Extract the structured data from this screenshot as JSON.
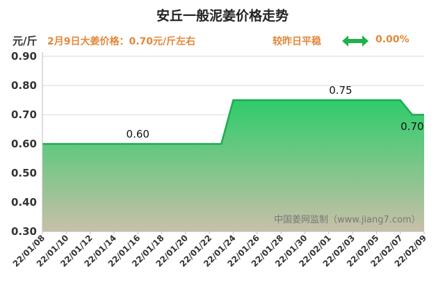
{
  "title": "安丘一般泥姜价格走势",
  "unit_label": "元/斤",
  "price_note": "2月9日大姜价格：0.70元/斤左右",
  "compare_note": "较昨日平稳",
  "change_value": "0.00%",
  "watermark": "中国姜网监制（www.jiang7.com）",
  "colors": {
    "line": "#1faa52",
    "fill_top": "#2ecc6a",
    "fill_bottom": "#c8c0a8",
    "accent": "#e3883a",
    "arrow": "#22b04b"
  },
  "icons": {
    "change": "double-arrow-icon"
  },
  "chart_data": {
    "type": "area",
    "ylim": [
      0.3,
      0.9
    ],
    "yticks": [
      "0.90",
      "0.80",
      "0.70",
      "0.60",
      "0.50",
      "0.40",
      "0.30"
    ],
    "xticks": [
      "22/01/08",
      "22/01/10",
      "22/01/12",
      "22/01/14",
      "22/01/16",
      "22/01/18",
      "22/01/20",
      "22/01/22",
      "22/01/24",
      "22/01/26",
      "22/01/28",
      "22/01/30",
      "22/02/01",
      "22/02/03",
      "22/02/05",
      "22/02/07",
      "22/02/09"
    ],
    "points": [
      {
        "x": "22/01/08",
        "y": 0.6
      },
      {
        "x": "22/01/23",
        "y": 0.6
      },
      {
        "x": "22/01/24",
        "y": 0.75
      },
      {
        "x": "22/02/07",
        "y": 0.75
      },
      {
        "x": "22/02/08",
        "y": 0.7
      },
      {
        "x": "22/02/09",
        "y": 0.7
      }
    ],
    "data_labels": [
      {
        "x": "22/01/16",
        "y": 0.6,
        "text": "0.60"
      },
      {
        "x": "22/02/02",
        "y": 0.75,
        "text": "0.75"
      },
      {
        "x": "22/02/08",
        "y": 0.7,
        "text": "0.70"
      }
    ],
    "grid": true,
    "legend": "none"
  }
}
